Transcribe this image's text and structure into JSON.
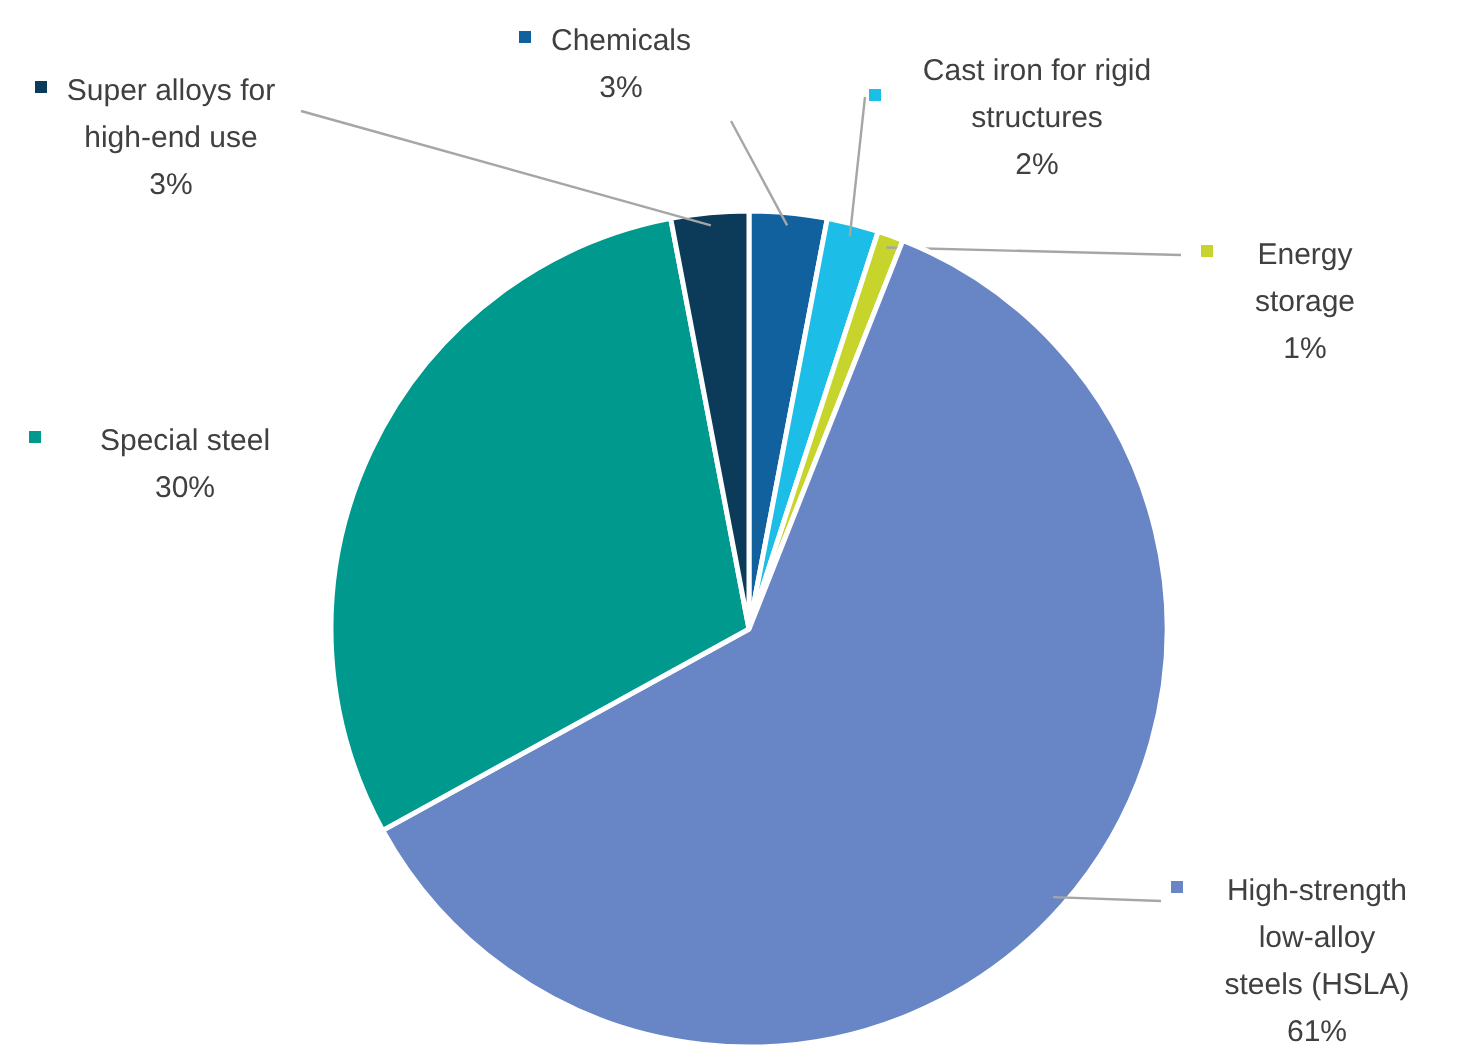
{
  "chart_data": {
    "type": "pie",
    "categories": [
      "Chemicals",
      "Cast iron for rigid structures",
      "Energy storage",
      "High-strength low-alloy steels (HSLA)",
      "Special steel",
      "Super alloys for high-end use"
    ],
    "values": [
      3,
      2,
      1,
      61,
      30,
      3
    ],
    "colors": [
      "#10619e",
      "#1cbde6",
      "#c6d42b",
      "#6886c5",
      "#00998d",
      "#0c3b5a"
    ],
    "value_labels": [
      "3%",
      "2%",
      "1%",
      "61%",
      "30%",
      "3%"
    ],
    "legend": "right"
  }
}
